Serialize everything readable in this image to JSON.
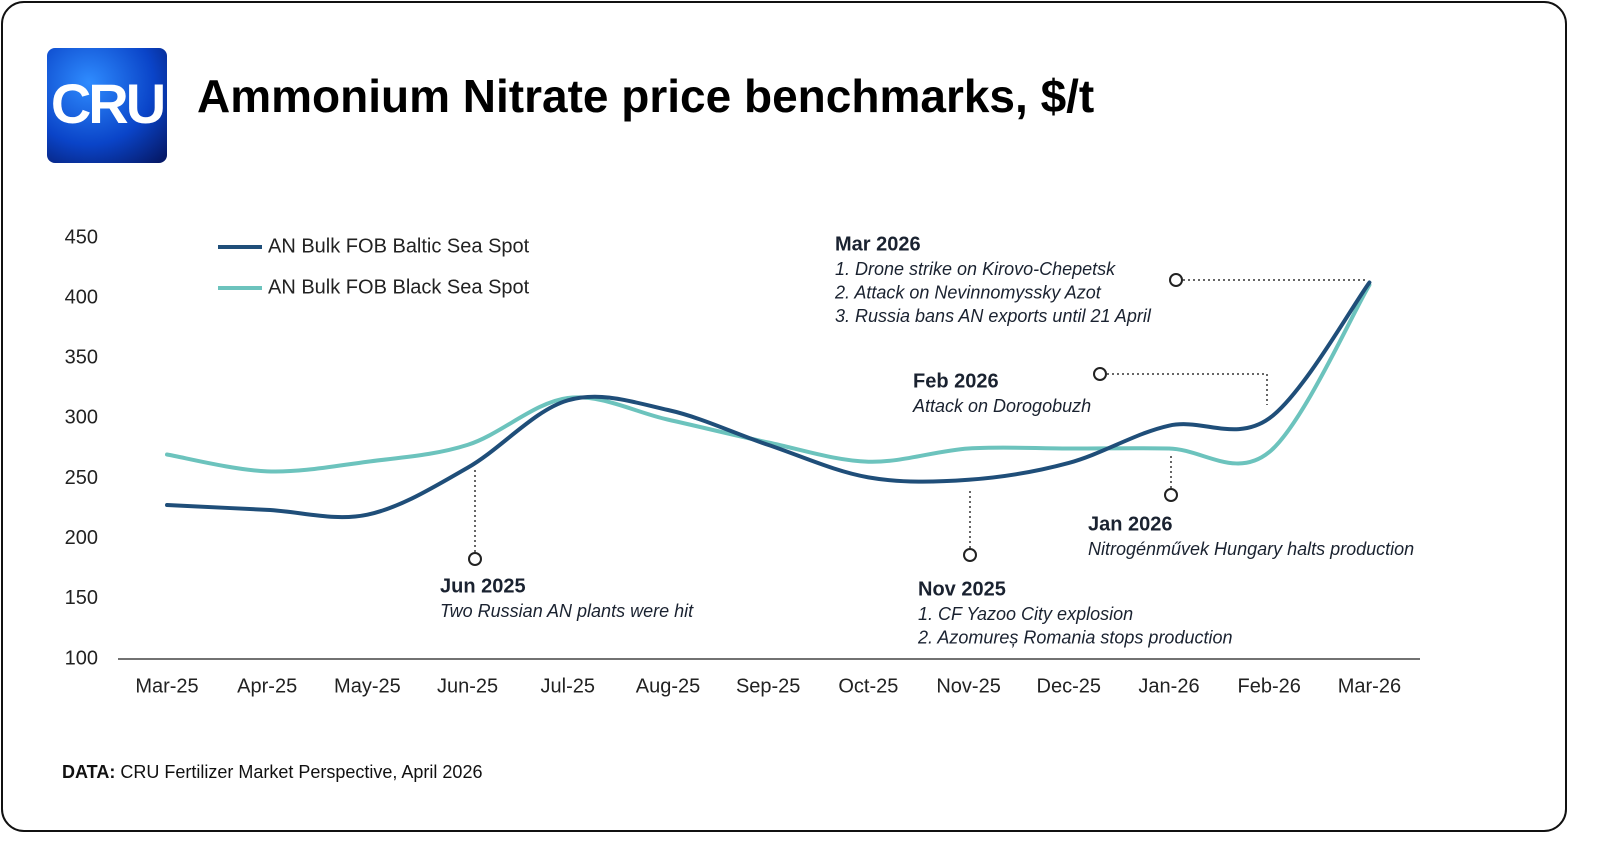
{
  "logo": "CRU",
  "chart_data": {
    "type": "line",
    "title": "Ammonium Nitrate price benchmarks, $/t",
    "categories": [
      "Mar-25",
      "Apr-25",
      "May-25",
      "Jun-25",
      "Jul-25",
      "Aug-25",
      "Sep-25",
      "Oct-25",
      "Nov-25",
      "Dec-25",
      "Jan-26",
      "Feb-26",
      "Mar-26"
    ],
    "series": [
      {
        "name": "AN Bulk FOB Baltic Sea Spot",
        "color": "#1f4e79",
        "values": [
          228,
          224,
          220,
          259,
          315,
          307,
          278,
          251,
          249,
          263,
          294,
          300,
          413
        ]
      },
      {
        "name": "AN Bulk FOB Black Sea Spot",
        "color": "#6cc3bd",
        "values": [
          270,
          256,
          264,
          278,
          317,
          299,
          280,
          264,
          275,
          275,
          275,
          272,
          411
        ]
      }
    ],
    "ylim": [
      100,
      450
    ],
    "yticks": [
      100,
      150,
      200,
      250,
      300,
      350,
      400,
      450
    ],
    "grid": false,
    "legend": "top-left",
    "annotations": [
      {
        "title": "Jun 2025",
        "lines": [
          "Two Russian AN plants were hit"
        ]
      },
      {
        "title": "Nov 2025",
        "lines": [
          "1. CF Yazoo City explosion",
          "2. Azomureș Romania stops production"
        ]
      },
      {
        "title": "Jan 2026",
        "lines": [
          "Nitrogénművek Hungary halts production"
        ]
      },
      {
        "title": "Feb 2026",
        "lines": [
          "Attack on Dorogobuzh"
        ]
      },
      {
        "title": "Mar 2026",
        "lines": [
          "1. Drone strike on Kirovo-Chepetsk",
          "2. Attack on Nevinnomyssky Azot",
          "3. Russia bans AN exports until 21 April"
        ]
      }
    ],
    "source_label": "DATA:",
    "source": "CRU Fertilizer Market Perspective, April 2026"
  }
}
